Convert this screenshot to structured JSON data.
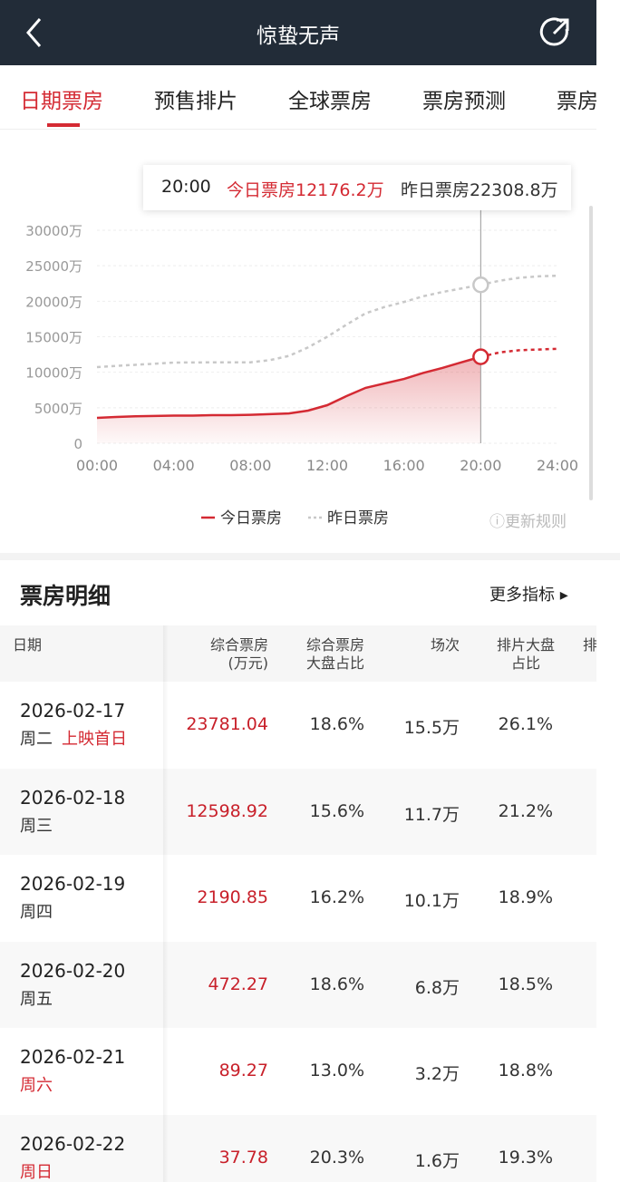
{
  "header": {
    "title": "惊蛰无声"
  },
  "tabs": [
    "日期票房",
    "预售排片",
    "全球票房",
    "票房预测",
    "票房"
  ],
  "tooltip": {
    "time": "20:00",
    "today": "今日票房12176.2万",
    "yesterday": "昨日票房22308.8万"
  },
  "update_rule": "更新规则",
  "chart_data": {
    "type": "line",
    "x": [
      0,
      1,
      2,
      3,
      4,
      5,
      6,
      7,
      8,
      9,
      10,
      11,
      12,
      13,
      14,
      15,
      16,
      17,
      18,
      19,
      20,
      21,
      22,
      23,
      24
    ],
    "xlim": [
      0,
      24
    ],
    "xticks": [
      {
        "value": 0,
        "label": "00:00"
      },
      {
        "value": 4,
        "label": "04:00"
      },
      {
        "value": 8,
        "label": "08:00"
      },
      {
        "value": 12,
        "label": "12:00"
      },
      {
        "value": 16,
        "label": "16:00"
      },
      {
        "value": 20,
        "label": "20:00"
      },
      {
        "value": 24,
        "label": "24:00"
      }
    ],
    "ylim": [
      0,
      30000
    ],
    "yticks": [
      0,
      {
        "value": 5000,
        "label": "5000万"
      },
      {
        "value": 10000,
        "label": "10000万"
      },
      {
        "value": 15000,
        "label": "15000万"
      },
      {
        "value": 20000,
        "label": "20000万"
      },
      {
        "value": 25000,
        "label": "25000万"
      },
      {
        "value": 30000,
        "label": "30000万"
      }
    ],
    "grid": true,
    "series": [
      {
        "name": "今日票房",
        "color": "#d42a33",
        "dash_after": 20,
        "values": [
          3570,
          3700,
          3800,
          3850,
          3900,
          3900,
          3950,
          3950,
          4000,
          4100,
          4200,
          4600,
          5360,
          6640,
          7800,
          8430,
          9060,
          9900,
          10600,
          11400,
          12176.2,
          12800,
          13100,
          13200,
          13300
        ]
      },
      {
        "name": "昨日票房",
        "color": "#c8c8c8",
        "values": [
          10720,
          10900,
          11050,
          11200,
          11360,
          11380,
          11390,
          11400,
          11400,
          11700,
          12300,
          13500,
          15000,
          16700,
          18300,
          19200,
          19900,
          20700,
          21300,
          21800,
          22308.8,
          22900,
          23300,
          23500,
          23600
        ]
      }
    ]
  },
  "detail": {
    "title": "票房明细",
    "more": "更多指标",
    "headers": [
      "日期",
      "综合票房\n(万元)",
      "综合票房\n大盘占比",
      "场次",
      "排片大盘\n占比",
      "排"
    ],
    "rows": [
      {
        "date": "2026-02-17",
        "weekday": "周二",
        "tag": "上映首日",
        "weekend": false,
        "cells": [
          "23781.04",
          "18.6%",
          "15.5万",
          "26.1%"
        ]
      },
      {
        "date": "2026-02-18",
        "weekday": "周三",
        "weekend": false,
        "cells": [
          "12598.92",
          "15.6%",
          "11.7万",
          "21.2%"
        ]
      },
      {
        "date": "2026-02-19",
        "weekday": "周四",
        "weekend": false,
        "cells": [
          "2190.85",
          "16.2%",
          "10.1万",
          "18.9%"
        ]
      },
      {
        "date": "2026-02-20",
        "weekday": "周五",
        "weekend": false,
        "cells": [
          "472.27",
          "18.6%",
          "6.8万",
          "18.5%"
        ]
      },
      {
        "date": "2026-02-21",
        "weekday": "周六",
        "weekend": true,
        "cells": [
          "89.27",
          "13.0%",
          "3.2万",
          "18.8%"
        ]
      },
      {
        "date": "2026-02-22",
        "weekday": "周日",
        "weekend": true,
        "cells": [
          "37.78",
          "20.3%",
          "1.6万",
          "19.3%"
        ]
      }
    ]
  }
}
